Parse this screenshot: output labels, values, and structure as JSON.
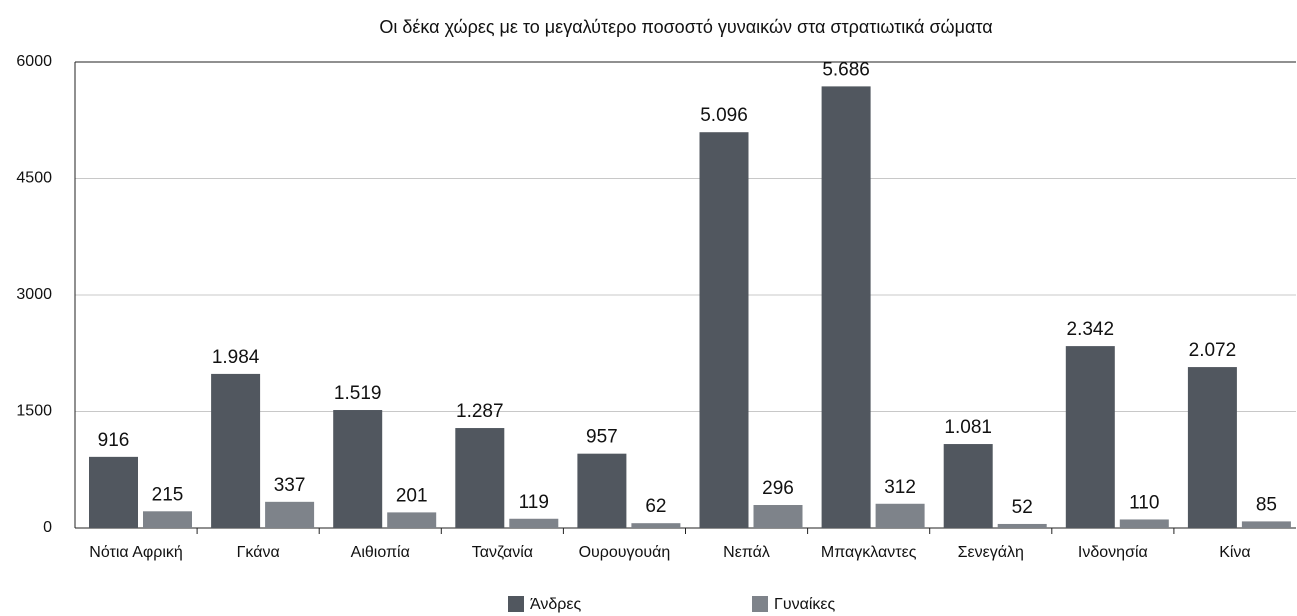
{
  "chart_data": {
    "type": "bar",
    "title": "Οι δέκα χώρες με το μεγαλύτερο ποσοστό γυναικών στα στρατιωτικά σώματα",
    "categories": [
      "Νότια Αφρική",
      "Γκάνα",
      "Αιθιοπία",
      "Τανζανία",
      "Ουρουγουάη",
      "Νεπάλ",
      "Μπαγκλαντες",
      "Σενεγάλη",
      "Ινδονησία",
      "Κίνα"
    ],
    "series": [
      {
        "name": "Άνδρες",
        "color": "#51575f",
        "values": [
          916,
          1984,
          1519,
          1287,
          957,
          5096,
          5686,
          1081,
          2342,
          2072
        ],
        "value_labels": [
          "916",
          "1.984",
          "1.519",
          "1.287",
          "957",
          "5.096",
          "5.686",
          "1.081",
          "2.342",
          "2.072"
        ]
      },
      {
        "name": "Γυναίκες",
        "color": "#7e838a",
        "values": [
          215,
          337,
          201,
          119,
          62,
          296,
          312,
          52,
          110,
          85
        ],
        "value_labels": [
          "215",
          "337",
          "201",
          "119",
          "62",
          "296",
          "312",
          "52",
          "110",
          "85"
        ]
      }
    ],
    "ylim": [
      0,
      6000
    ],
    "yticks": [
      0,
      1500,
      3000,
      4500,
      6000
    ],
    "grid": true,
    "legend": "bottom"
  }
}
